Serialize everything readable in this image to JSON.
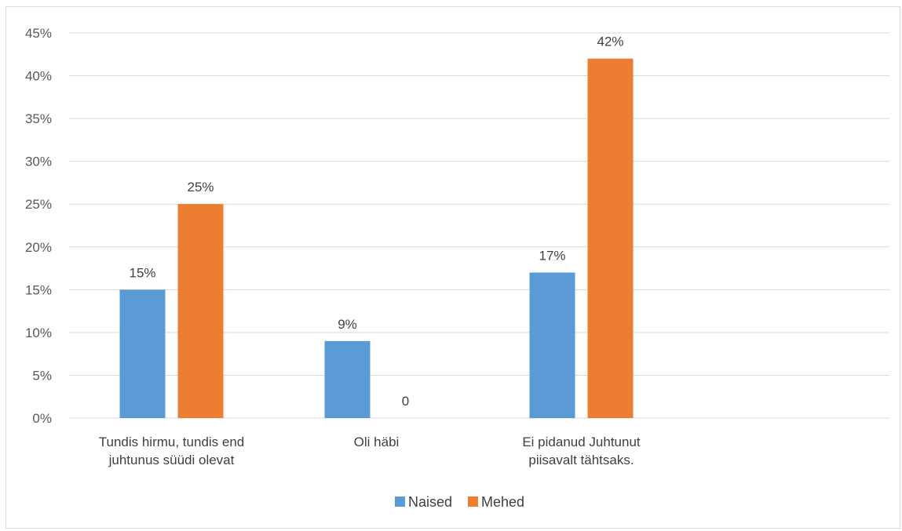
{
  "chart_data": {
    "type": "bar",
    "categories": [
      [
        "Tundis hirmu, tundis end",
        "juhtunus süüdi olevat"
      ],
      [
        "Oli häbi"
      ],
      [
        "Ei pidanud Juhtunut",
        "piisavalt tähtsaks."
      ]
    ],
    "series": [
      {
        "name": "Naised",
        "color": "#5b9bd5",
        "values": [
          0.15,
          0.09,
          0.17
        ],
        "labels": [
          "15%",
          "9%",
          "17%"
        ]
      },
      {
        "name": "Mehed",
        "color": "#ed7d31",
        "values": [
          0.25,
          0,
          0.42
        ],
        "labels": [
          "25%",
          "0",
          "42%"
        ]
      }
    ],
    "ylim": [
      0,
      0.45
    ],
    "yticks": [
      "0%",
      "5%",
      "10%",
      "15%",
      "20%",
      "25%",
      "30%",
      "35%",
      "40%",
      "45%"
    ],
    "grid": true,
    "legend": "bottom",
    "title": "",
    "xlabel": "",
    "ylabel": ""
  }
}
